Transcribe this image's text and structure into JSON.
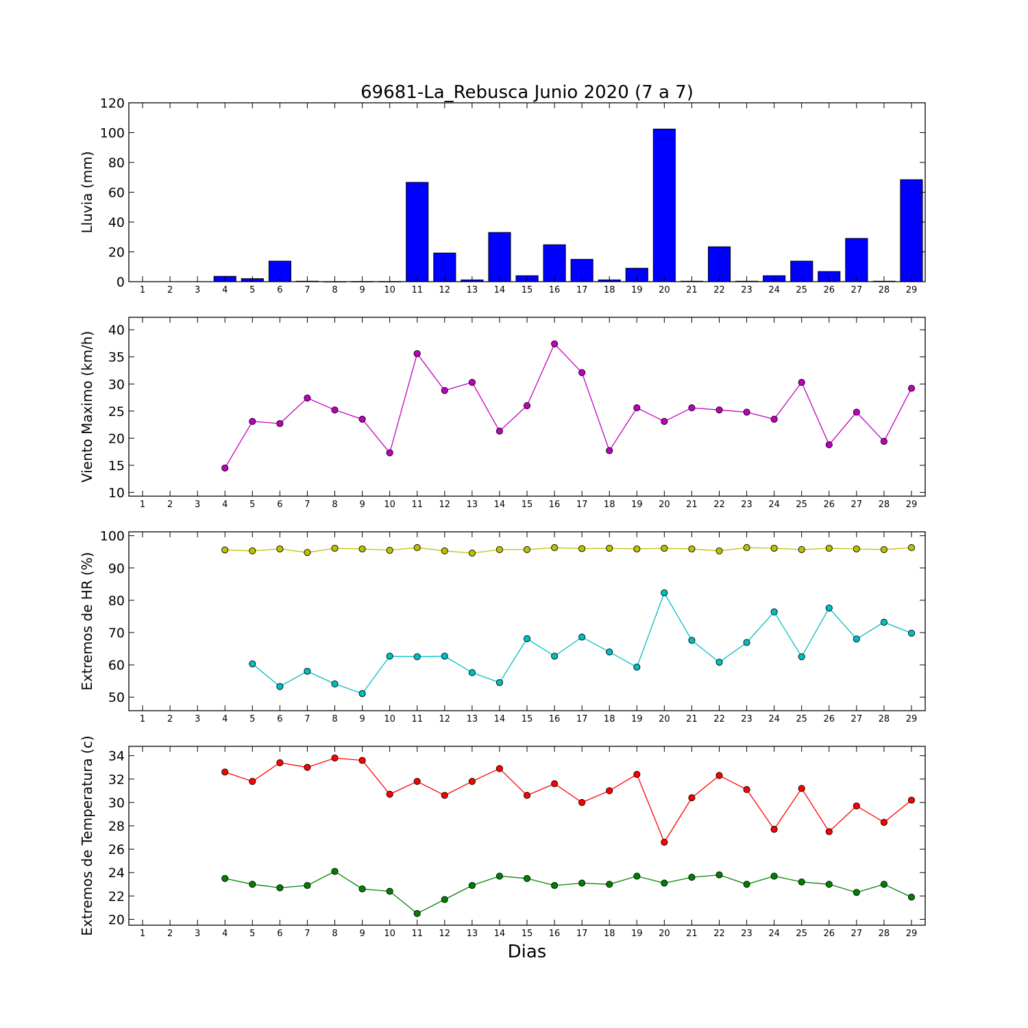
{
  "figure": {
    "title": "69681-La_Rebusca Junio 2020  (7 a 7)",
    "xlabel": "Dias",
    "colors": {
      "axes": "#000000",
      "background": "#ffffff"
    }
  },
  "chart_data": [
    {
      "type": "bar",
      "ylabel": "Lluvia (mm)",
      "ylim": [
        0,
        120
      ],
      "yticks": [
        0,
        20,
        40,
        60,
        80,
        100,
        120
      ],
      "xlim": [
        0.5,
        29.5
      ],
      "xticks": [
        1,
        2,
        3,
        4,
        5,
        6,
        7,
        8,
        9,
        10,
        11,
        12,
        13,
        14,
        15,
        16,
        17,
        18,
        19,
        20,
        21,
        22,
        23,
        24,
        25,
        26,
        27,
        28,
        29
      ],
      "grid": false,
      "series": [
        {
          "color": "#0000ff",
          "x": [
            4,
            5,
            6,
            7,
            8,
            9,
            10,
            11,
            12,
            13,
            14,
            15,
            16,
            17,
            18,
            19,
            20,
            21,
            22,
            23,
            24,
            25,
            26,
            27,
            28,
            29
          ],
          "values": [
            3.6,
            2.0,
            13.8,
            0.3,
            0,
            0.1,
            0.1,
            66.6,
            19.2,
            1.2,
            33.0,
            4.0,
            24.8,
            15.0,
            1.2,
            9.0,
            102.4,
            0.3,
            23.4,
            0.3,
            4.0,
            13.8,
            6.8,
            29.0,
            0.3,
            68.4
          ]
        }
      ]
    },
    {
      "type": "line",
      "ylabel": "Viento Maximo (km/h)",
      "ylim": [
        9.3,
        42.3
      ],
      "yticks": [
        10,
        15,
        20,
        25,
        30,
        35,
        40
      ],
      "xlim": [
        0.5,
        29.5
      ],
      "xticks": [
        1,
        2,
        3,
        4,
        5,
        6,
        7,
        8,
        9,
        10,
        11,
        12,
        13,
        14,
        15,
        16,
        17,
        18,
        19,
        20,
        21,
        22,
        23,
        24,
        25,
        26,
        27,
        28,
        29
      ],
      "grid": false,
      "series": [
        {
          "color": "#bf00bf",
          "x": [
            4,
            5,
            6,
            7,
            8,
            9,
            10,
            11,
            12,
            13,
            14,
            15,
            16,
            17,
            18,
            19,
            20,
            21,
            22,
            23,
            24,
            25,
            26,
            27,
            28,
            29
          ],
          "values": [
            14.5,
            23.1,
            22.7,
            27.4,
            25.2,
            23.5,
            17.3,
            35.6,
            28.8,
            30.3,
            21.3,
            26.0,
            37.4,
            32.1,
            17.7,
            25.6,
            23.1,
            25.6,
            25.2,
            24.8,
            23.5,
            30.3,
            18.8,
            24.8,
            19.4,
            29.2
          ]
        }
      ]
    },
    {
      "type": "line",
      "ylabel": "Extremos de HR (%)",
      "ylim": [
        45.8,
        101.2
      ],
      "yticks": [
        50,
        60,
        70,
        80,
        90,
        100
      ],
      "xlim": [
        0.5,
        29.5
      ],
      "xticks": [
        1,
        2,
        3,
        4,
        5,
        6,
        7,
        8,
        9,
        10,
        11,
        12,
        13,
        14,
        15,
        16,
        17,
        18,
        19,
        20,
        21,
        22,
        23,
        24,
        25,
        26,
        27,
        28,
        29
      ],
      "grid": false,
      "series": [
        {
          "color": "#bfbf00",
          "x": [
            4,
            5,
            6,
            7,
            8,
            9,
            10,
            11,
            12,
            13,
            14,
            15,
            16,
            17,
            18,
            19,
            20,
            21,
            22,
            23,
            24,
            25,
            26,
            27,
            28,
            29
          ],
          "values": [
            95.6,
            95.3,
            95.9,
            94.8,
            96.1,
            95.9,
            95.5,
            96.3,
            95.3,
            94.6,
            95.7,
            95.7,
            96.3,
            96.0,
            96.1,
            95.9,
            96.1,
            95.9,
            95.3,
            96.3,
            96.1,
            95.7,
            96.1,
            95.9,
            95.7,
            96.3
          ]
        },
        {
          "color": "#00bfbf",
          "x": [
            5,
            6,
            7,
            8,
            9,
            10,
            11,
            12,
            13,
            14,
            15,
            16,
            17,
            18,
            19,
            20,
            21,
            22,
            23,
            24,
            25,
            26,
            27,
            28,
            29
          ],
          "values": [
            60.3,
            53.3,
            58.0,
            54.1,
            51.1,
            62.7,
            62.5,
            62.7,
            57.6,
            54.5,
            68.1,
            62.7,
            68.6,
            64.0,
            59.3,
            82.3,
            67.6,
            60.8,
            66.9,
            76.4,
            62.5,
            77.6,
            68.0,
            73.2,
            69.8
          ]
        }
      ]
    },
    {
      "type": "line",
      "ylabel": "Extremos de Temperatura (c)",
      "ylim": [
        19.5,
        34.8
      ],
      "yticks": [
        20,
        22,
        24,
        26,
        28,
        30,
        32,
        34
      ],
      "xlim": [
        0.5,
        29.5
      ],
      "xticks": [
        1,
        2,
        3,
        4,
        5,
        6,
        7,
        8,
        9,
        10,
        11,
        12,
        13,
        14,
        15,
        16,
        17,
        18,
        19,
        20,
        21,
        22,
        23,
        24,
        25,
        26,
        27,
        28,
        29
      ],
      "grid": false,
      "series": [
        {
          "color": "#ff0000",
          "x": [
            4,
            5,
            6,
            7,
            8,
            9,
            10,
            11,
            12,
            13,
            14,
            15,
            16,
            17,
            18,
            19,
            20,
            21,
            22,
            23,
            24,
            25,
            26,
            27,
            28,
            29
          ],
          "values": [
            32.6,
            31.8,
            33.4,
            33.0,
            33.8,
            33.6,
            30.7,
            31.8,
            30.6,
            31.8,
            32.9,
            30.6,
            31.6,
            30.0,
            31.0,
            32.4,
            26.6,
            30.4,
            32.3,
            31.1,
            27.7,
            31.2,
            27.5,
            29.7,
            28.3,
            30.2
          ]
        },
        {
          "color": "#008000",
          "x": [
            4,
            5,
            6,
            7,
            8,
            9,
            10,
            11,
            12,
            13,
            14,
            15,
            16,
            17,
            18,
            19,
            20,
            21,
            22,
            23,
            24,
            25,
            26,
            27,
            28,
            29
          ],
          "values": [
            23.5,
            23.0,
            22.7,
            22.9,
            24.1,
            22.6,
            22.4,
            20.5,
            21.7,
            22.9,
            23.7,
            23.5,
            22.9,
            23.1,
            23.0,
            23.7,
            23.1,
            23.6,
            23.8,
            23.0,
            23.7,
            23.2,
            23.0,
            22.3,
            23.0,
            21.9
          ]
        }
      ]
    }
  ]
}
